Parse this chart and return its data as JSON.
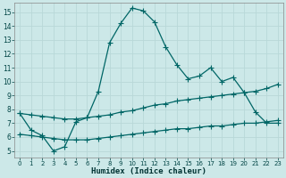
{
  "xlabel": "Humidex (Indice chaleur)",
  "bg_color": "#cce8e8",
  "grid_color": "#b8d8d8",
  "line_color": "#006666",
  "xlim": [
    -0.5,
    23.5
  ],
  "ylim": [
    4.5,
    15.7
  ],
  "yticks": [
    5,
    6,
    7,
    8,
    9,
    10,
    11,
    12,
    13,
    14,
    15
  ],
  "xticks": [
    0,
    1,
    2,
    3,
    4,
    5,
    6,
    7,
    8,
    9,
    10,
    11,
    12,
    13,
    14,
    15,
    16,
    17,
    18,
    19,
    20,
    21,
    22,
    23
  ],
  "curve1_x": [
    0,
    1,
    2,
    3,
    4,
    5,
    6,
    7,
    8,
    9,
    10,
    11,
    12,
    13,
    14,
    15,
    16,
    17,
    18,
    19,
    20,
    21,
    22,
    23
  ],
  "curve1_y": [
    7.7,
    6.5,
    6.1,
    5.0,
    5.3,
    7.1,
    7.4,
    9.3,
    12.8,
    14.2,
    15.3,
    15.1,
    14.3,
    12.5,
    11.2,
    10.2,
    10.4,
    11.0,
    10.0,
    10.3,
    9.2,
    7.8,
    7.0,
    7.0
  ],
  "curve2_x": [
    0,
    1,
    2,
    3,
    4,
    5,
    6,
    7,
    8,
    9,
    10,
    11,
    12,
    13,
    14,
    15,
    16,
    17,
    18,
    19,
    20,
    21,
    22,
    23
  ],
  "curve2_y": [
    7.7,
    7.6,
    7.5,
    7.4,
    7.3,
    7.3,
    7.4,
    7.5,
    7.6,
    7.8,
    7.9,
    8.1,
    8.3,
    8.4,
    8.6,
    8.7,
    8.8,
    8.9,
    9.0,
    9.1,
    9.2,
    9.3,
    9.5,
    9.8
  ],
  "curve3_x": [
    0,
    1,
    2,
    3,
    4,
    5,
    6,
    7,
    8,
    9,
    10,
    11,
    12,
    13,
    14,
    15,
    16,
    17,
    18,
    19,
    20,
    21,
    22,
    23
  ],
  "curve3_y": [
    6.2,
    6.1,
    6.0,
    5.9,
    5.8,
    5.8,
    5.8,
    5.9,
    6.0,
    6.1,
    6.2,
    6.3,
    6.4,
    6.5,
    6.6,
    6.6,
    6.7,
    6.8,
    6.8,
    6.9,
    7.0,
    7.0,
    7.1,
    7.2
  ],
  "marker": "+",
  "markersize": 4,
  "linewidth": 0.9
}
